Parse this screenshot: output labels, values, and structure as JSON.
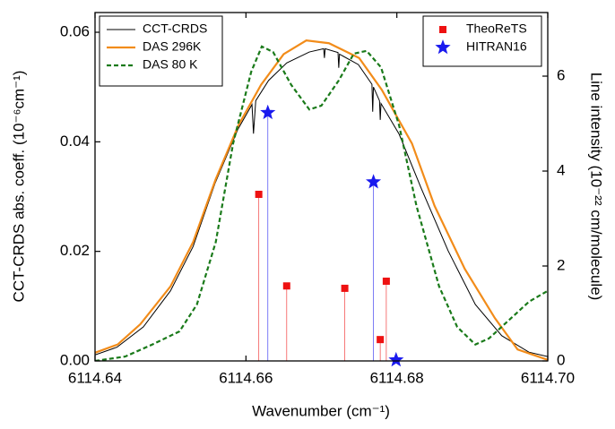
{
  "chart_data": {
    "type": "line",
    "xlabel": "Wavenumber (cm⁻¹)",
    "ylabel": "CCT-CRDS abs. coeff. (10⁻⁶cm⁻¹)",
    "y2label": "Line intensity (10⁻²² cm/molecule)",
    "xlim": [
      6114.64,
      6114.7
    ],
    "xticks": [
      6114.64,
      6114.66,
      6114.68,
      {
        "value": 6114.7,
        "label": "6114.70"
      }
    ],
    "ylim": [
      0,
      0.0636
    ],
    "yticks": [
      {
        "value": 0,
        "label": "0.00"
      },
      0.02,
      0.04,
      0.06
    ],
    "y2lim": [
      0,
      7.34
    ],
    "y2ticks": [
      0,
      2,
      4,
      6
    ],
    "legend": {
      "y": "upper left",
      "y2": "upper right"
    },
    "series": [
      {
        "name": "CCT-CRDS",
        "type": "line",
        "color": "#000000",
        "linestyle": "solid",
        "axis": "y",
        "x": [
          6114.64,
          6114.6429,
          6114.6464,
          6114.65,
          6114.653,
          6114.6559,
          6114.6589,
          6114.6608,
          6114.661,
          6114.6613,
          6114.663,
          6114.6654,
          6114.6684,
          6114.6703,
          6114.6704,
          6114.6705,
          6114.6722,
          6114.6723,
          6114.6724,
          6114.6749,
          6114.6767,
          6114.6768,
          6114.6769,
          6114.6777,
          6114.6778,
          6114.6779,
          6114.6803,
          6114.6832,
          6114.6868,
          6114.6904,
          6114.6939,
          6114.6975,
          6114.7
        ],
        "values": [
          0.0011,
          0.0025,
          0.0062,
          0.0128,
          0.0209,
          0.0324,
          0.0422,
          0.0468,
          0.0415,
          0.0475,
          0.0512,
          0.0544,
          0.0564,
          0.057,
          0.0553,
          0.057,
          0.0563,
          0.0535,
          0.056,
          0.0541,
          0.0505,
          0.0455,
          0.05,
          0.0475,
          0.044,
          0.047,
          0.0414,
          0.0316,
          0.0201,
          0.0103,
          0.0046,
          0.0016,
          0.0008
        ]
      },
      {
        "name": "DAS 296K",
        "type": "line",
        "color": "#f28c1a",
        "linestyle": "solid",
        "axis": "y",
        "x": [
          6114.64,
          6114.643,
          6114.646,
          6114.65,
          6114.653,
          6114.656,
          6114.659,
          6114.662,
          6114.665,
          6114.668,
          6114.671,
          6114.675,
          6114.678,
          6114.682,
          6114.685,
          6114.689,
          6114.693,
          6114.696,
          6114.7
        ],
        "values": [
          0.0015,
          0.003,
          0.0067,
          0.0136,
          0.0217,
          0.0332,
          0.043,
          0.0504,
          0.056,
          0.0585,
          0.058,
          0.0553,
          0.0495,
          0.0397,
          0.0283,
          0.0168,
          0.0078,
          0.0021,
          0.0002
        ]
      },
      {
        "name": "DAS 80 K",
        "type": "line",
        "color": "#1a7a1a",
        "linestyle": "dashed",
        "axis": "y",
        "x": [
          6114.64,
          6114.644,
          6114.6476,
          6114.6512,
          6114.6535,
          6114.656,
          6114.6583,
          6114.6607,
          6114.6621,
          6114.6636,
          6114.666,
          6114.6684,
          6114.67,
          6114.6723,
          6114.6743,
          6114.676,
          6114.6779,
          6114.6803,
          6114.6826,
          6114.6856,
          6114.688,
          6114.6904,
          6114.6922,
          6114.6945,
          6114.6975,
          6114.7
        ],
        "values": [
          0,
          0.0008,
          0.003,
          0.0054,
          0.0103,
          0.0217,
          0.0397,
          0.0528,
          0.0574,
          0.0564,
          0.0504,
          0.0459,
          0.0466,
          0.0512,
          0.0561,
          0.0566,
          0.0536,
          0.043,
          0.0283,
          0.0136,
          0.0062,
          0.003,
          0.0041,
          0.007,
          0.0108,
          0.0128
        ]
      },
      {
        "name": "TheoReTS",
        "type": "stem",
        "marker": "square",
        "color": "#ee1111",
        "axis": "y2",
        "x": [
          6114.6617,
          6114.6654,
          6114.6731,
          6114.6778,
          6114.6786
        ],
        "values": [
          3.51,
          1.58,
          1.53,
          0.45,
          1.68
        ]
      },
      {
        "name": "HITRAN16",
        "type": "stem",
        "marker": "star",
        "color": "#1a1aee",
        "axis": "y2",
        "x": [
          6114.6629,
          6114.6769,
          6114.6799
        ],
        "values": [
          5.23,
          3.77,
          0.02
        ]
      }
    ]
  }
}
